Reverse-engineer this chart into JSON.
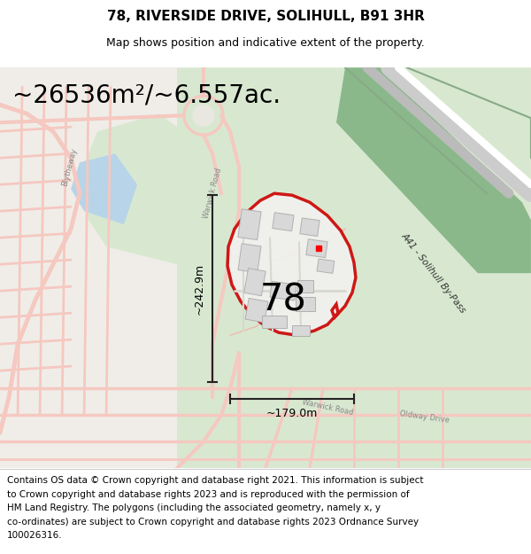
{
  "title": "78, RIVERSIDE DRIVE, SOLIHULL, B91 3HR",
  "subtitle": "Map shows position and indicative extent of the property.",
  "area_text": "~26536m²/~6.557ac.",
  "number_label": "78",
  "width_label": "~179.0m",
  "height_label": "~242.9m",
  "footer_lines": [
    "Contains OS data © Crown copyright and database right 2021. This information is subject",
    "to Crown copyright and database rights 2023 and is reproduced with the permission of",
    "HM Land Registry. The polygons (including the associated geometry, namely x, y",
    "co-ordinates) are subject to Crown copyright and database rights 2023 Ordnance Survey",
    "100026316."
  ],
  "fig_width": 6.0,
  "fig_height": 6.25,
  "dpi": 100,
  "bg_color": "#eef2ee",
  "road_color": "#f5c8c0",
  "road_outline": "#e8b0a8",
  "green_color": "#d8e8d0",
  "green2_color": "#c8dcc0",
  "water_color": "#b8d4e8",
  "bypass_green": "#8ab88a",
  "bypass_road_gray": "#aaaaaa",
  "plot_fill": "#f2f2f0",
  "plot_edge": "#cc0000",
  "building_fill": "#d8d8d8",
  "building_edge": "#b0b0b0",
  "arrow_color": "#222222",
  "title_fontsize": 11,
  "subtitle_fontsize": 9,
  "area_fontsize": 20,
  "number_fontsize": 30,
  "label_fontsize": 9,
  "footer_fontsize": 7.5,
  "map_label_fontsize": 6
}
